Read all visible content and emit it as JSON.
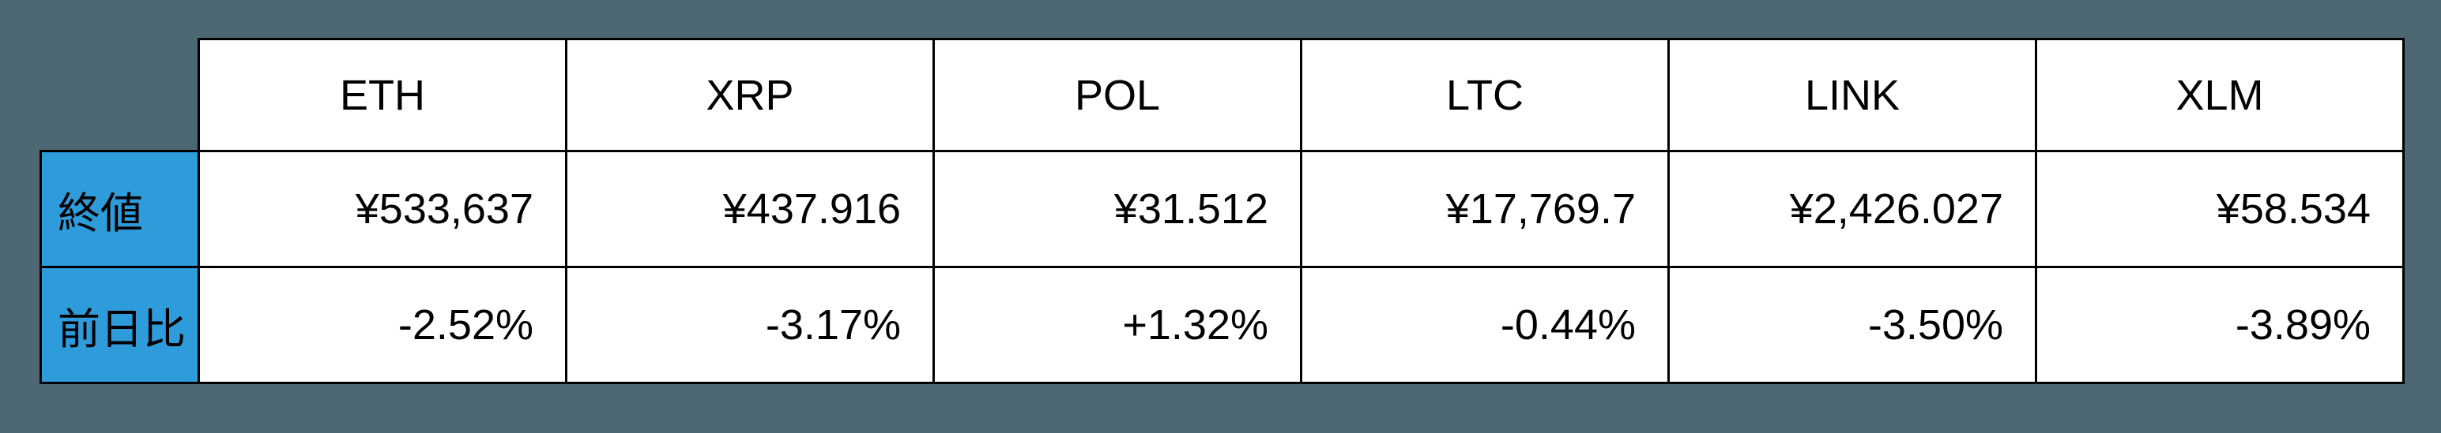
{
  "colors": {
    "page_background": "#4d6872",
    "row_header_background": "#2e9bdb",
    "cell_background": "#ffffff",
    "border": "#000000",
    "text": "#000000"
  },
  "chart_data": {
    "type": "table",
    "columns": [
      "ETH",
      "XRP",
      "POL",
      "LTC",
      "LINK",
      "XLM"
    ],
    "rows": [
      {
        "label": "終値",
        "values": [
          "¥533,637",
          "¥437.916",
          "¥31.512",
          "¥17,769.7",
          "¥2,426.027",
          "¥58.534"
        ]
      },
      {
        "label": "前日比",
        "values": [
          "-2.52%",
          "-3.17%",
          "+1.32%",
          "-0.44%",
          "-3.50%",
          "-3.89%"
        ]
      }
    ]
  }
}
